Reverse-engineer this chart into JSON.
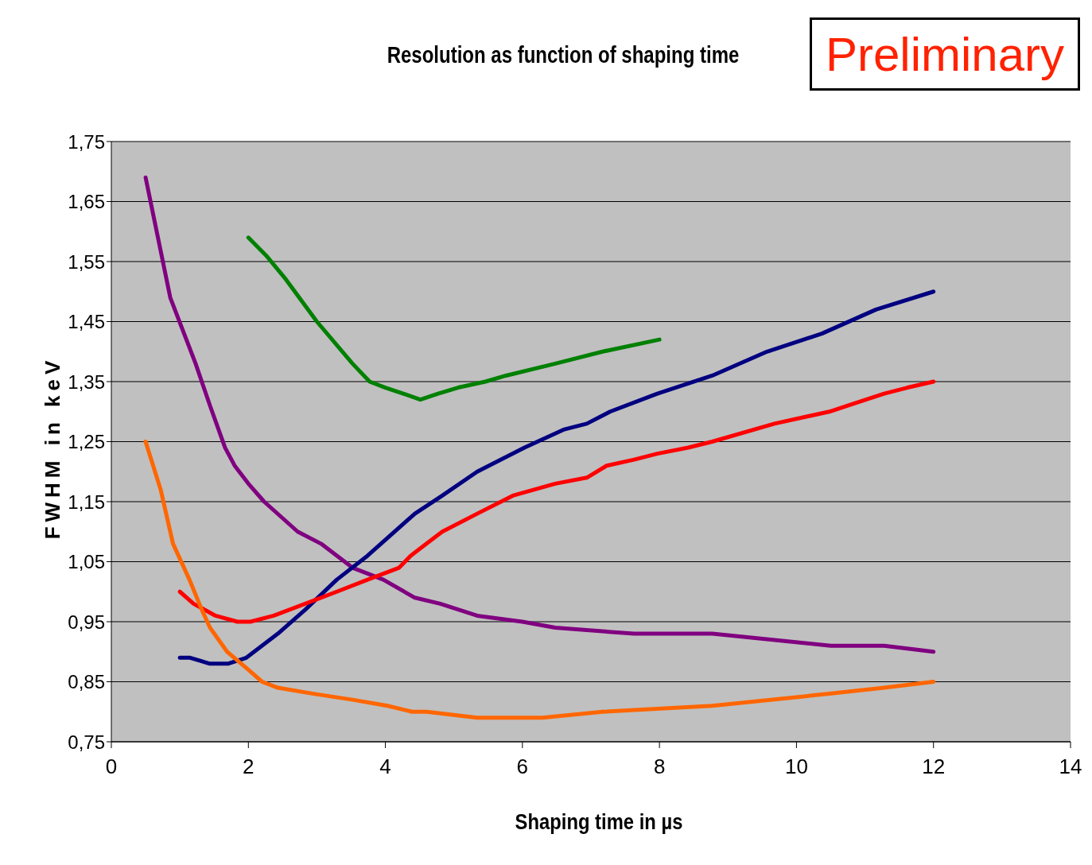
{
  "chart_data": {
    "type": "line",
    "title": "Resolution as function of shaping time",
    "xlabel": "Shaping time in µs",
    "ylabel": "FWHM in keV",
    "annotations": [
      "Preliminary"
    ],
    "xlim": [
      0,
      14
    ],
    "xticks": [
      0,
      2,
      4,
      6,
      8,
      10,
      12,
      14
    ],
    "ylim": [
      0.75,
      1.75
    ],
    "yticks": [
      {
        "value": 0.75,
        "label": "0,75"
      },
      {
        "value": 0.85,
        "label": "0,85"
      },
      {
        "value": 0.95,
        "label": "0,95"
      },
      {
        "value": 1.05,
        "label": "1,05"
      },
      {
        "value": 1.15,
        "label": "1,15"
      },
      {
        "value": 1.25,
        "label": "1,25"
      },
      {
        "value": 1.35,
        "label": "1,35"
      },
      {
        "value": 1.45,
        "label": "1,45"
      },
      {
        "value": 1.55,
        "label": "1,55"
      },
      {
        "value": 1.65,
        "label": "1,65"
      },
      {
        "value": 1.75,
        "label": "1,75"
      }
    ],
    "grid": "y",
    "marker": "none",
    "line_style": "solid",
    "series": [
      {
        "color": "#800080",
        "x": [
          0.5,
          0.86,
          1.23,
          1.44,
          1.66,
          1.8,
          2.0,
          2.23,
          2.72,
          3.06,
          3.52,
          3.97,
          4.43,
          4.8,
          5.34,
          6.0,
          6.48,
          7.63,
          8.31,
          8.77,
          10.5,
          11.28,
          12.0
        ],
        "values": [
          1.69,
          1.49,
          1.38,
          1.31,
          1.24,
          1.21,
          1.18,
          1.15,
          1.1,
          1.08,
          1.04,
          1.02,
          0.99,
          0.98,
          0.96,
          0.95,
          0.94,
          0.93,
          0.93,
          0.93,
          0.91,
          0.91,
          0.9
        ]
      },
      {
        "color": "#008000",
        "x": [
          2.0,
          2.26,
          2.55,
          3.0,
          3.52,
          3.77,
          4.0,
          4.26,
          4.51,
          4.77,
          5.06,
          5.46,
          5.76,
          6.48,
          7.17,
          8.0
        ],
        "values": [
          1.59,
          1.56,
          1.52,
          1.45,
          1.38,
          1.35,
          1.34,
          1.33,
          1.32,
          1.33,
          1.34,
          1.35,
          1.36,
          1.38,
          1.4,
          1.42
        ]
      },
      {
        "color": "#000080",
        "x": [
          1.0,
          1.15,
          1.44,
          1.7,
          1.97,
          2.43,
          2.83,
          3.29,
          3.74,
          4.43,
          4.83,
          5.34,
          6.03,
          6.6,
          6.94,
          7.28,
          7.97,
          8.77,
          9.57,
          10.37,
          11.16,
          12.0
        ],
        "values": [
          0.89,
          0.89,
          0.88,
          0.88,
          0.89,
          0.93,
          0.97,
          1.02,
          1.06,
          1.13,
          1.16,
          1.2,
          1.24,
          1.27,
          1.28,
          1.3,
          1.33,
          1.36,
          1.4,
          1.43,
          1.47,
          1.5
        ]
      },
      {
        "color": "#ff0000",
        "x": [
          1.0,
          1.2,
          1.52,
          1.84,
          2.03,
          2.37,
          2.83,
          3.29,
          3.74,
          4.2,
          4.37,
          4.6,
          4.83,
          5.34,
          5.86,
          6.48,
          6.94,
          7.23,
          7.63,
          7.97,
          8.42,
          8.77,
          9.68,
          10.48,
          11.28,
          11.62,
          12.0
        ],
        "values": [
          1.0,
          0.98,
          0.96,
          0.95,
          0.95,
          0.96,
          0.98,
          1.0,
          1.02,
          1.04,
          1.06,
          1.08,
          1.1,
          1.13,
          1.16,
          1.18,
          1.19,
          1.21,
          1.22,
          1.23,
          1.24,
          1.25,
          1.28,
          1.3,
          1.33,
          1.34,
          1.35
        ]
      },
      {
        "color": "#ff6600",
        "x": [
          0.5,
          0.72,
          0.9,
          1.14,
          1.32,
          1.44,
          1.69,
          2.0,
          2.2,
          2.43,
          2.95,
          3.52,
          4.03,
          4.39,
          4.6,
          5.34,
          6.29,
          7.17,
          8.77,
          10.48,
          11.28,
          12.0
        ],
        "values": [
          1.25,
          1.17,
          1.08,
          1.02,
          0.97,
          0.94,
          0.9,
          0.87,
          0.85,
          0.84,
          0.83,
          0.82,
          0.81,
          0.8,
          0.8,
          0.79,
          0.79,
          0.8,
          0.81,
          0.83,
          0.84,
          0.85
        ]
      }
    ]
  }
}
